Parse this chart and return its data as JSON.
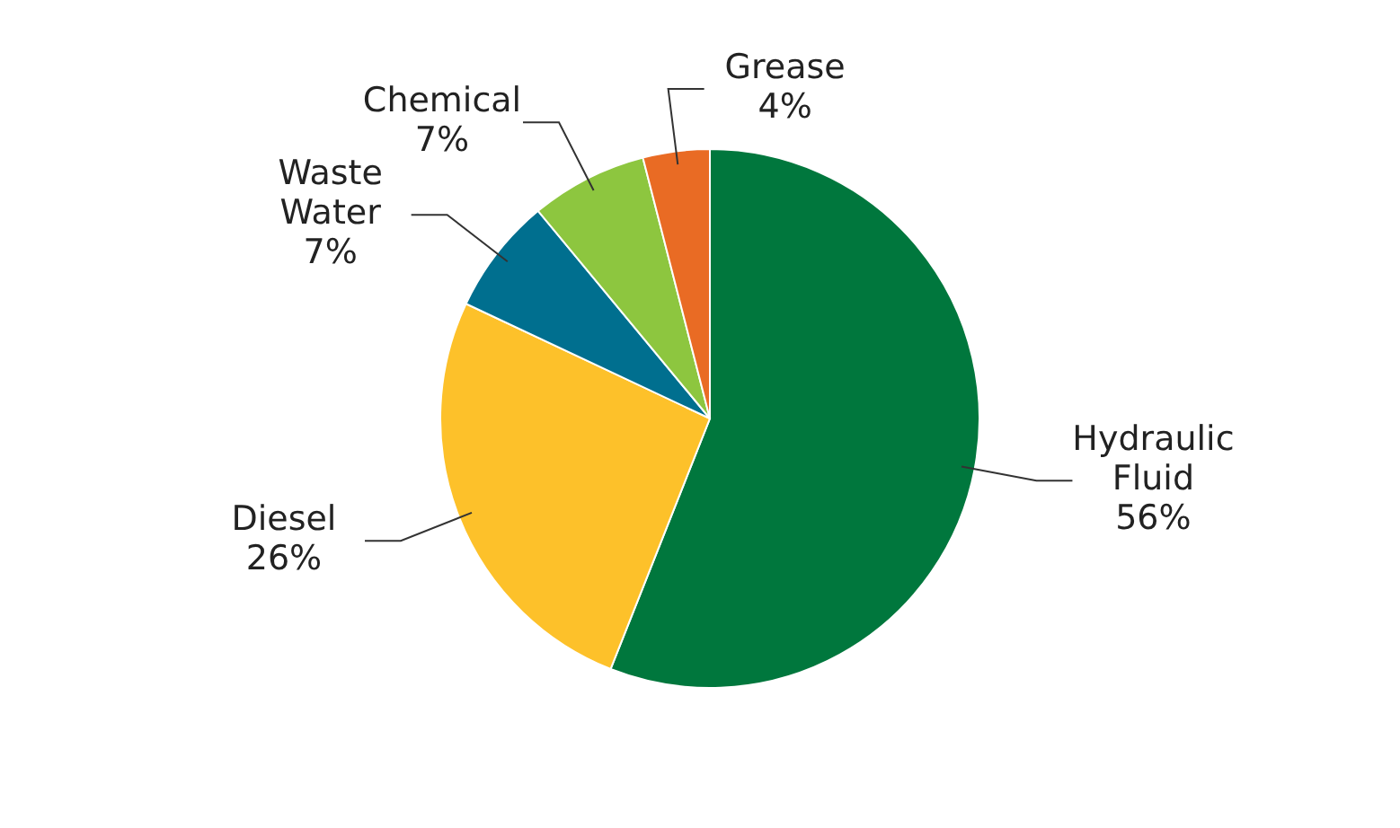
{
  "chart_data": {
    "type": "pie",
    "categories": [
      "Hydraulic Fluid",
      "Diesel",
      "Waste Water",
      "Chemical",
      "Grease"
    ],
    "values": [
      56,
      26,
      7,
      7,
      4
    ],
    "colors": [
      "#00773d",
      "#fdc12a",
      "#006f8f",
      "#8dc63f",
      "#e96b24"
    ],
    "value_labels": [
      "56%",
      "26%",
      "7%",
      "7%",
      "4%"
    ]
  }
}
